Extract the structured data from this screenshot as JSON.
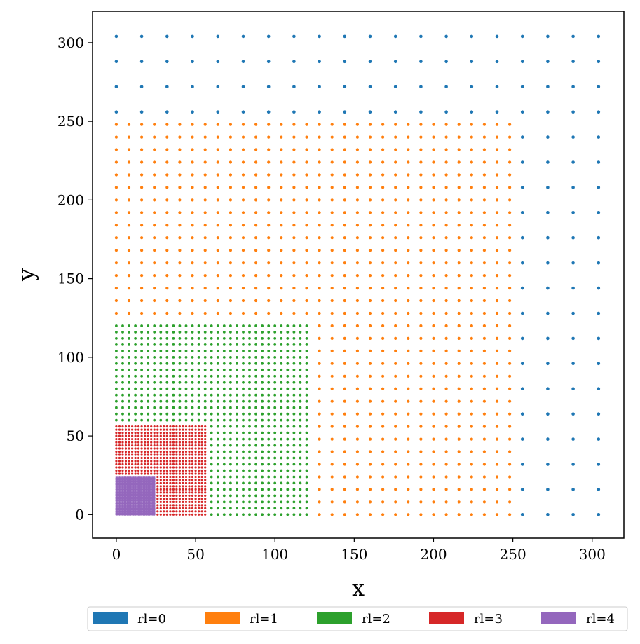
{
  "chart_data": {
    "type": "scatter",
    "title": "",
    "xlabel": "x",
    "ylabel": "y",
    "xlim": [
      -15,
      320
    ],
    "ylim": [
      -15,
      320
    ],
    "xticks": [
      0,
      50,
      100,
      150,
      200,
      250,
      300
    ],
    "yticks": [
      0,
      50,
      100,
      150,
      200,
      250,
      300
    ],
    "grid": false,
    "legend_position": "bottom",
    "series": [
      {
        "name": "rl=0",
        "color": "#1f77b4",
        "spacing": 16,
        "region": "x 0–304, y 0–304 (outside rl=1 region)"
      },
      {
        "name": "rl=1",
        "color": "#ff7f0e",
        "spacing": 8,
        "region": "x 0–248, y 0–248 (outside rl=2 region)"
      },
      {
        "name": "rl=2",
        "color": "#2ca02c",
        "spacing": 4,
        "region": "x 0–120, y 0–120 (outside rl=3 region)"
      },
      {
        "name": "rl=3",
        "color": "#d62728",
        "spacing": 2,
        "region": "x 0–56, y 0–56 (outside rl=4 region)"
      },
      {
        "name": "rl=4",
        "color": "#9467bd",
        "spacing": 1,
        "region": "x 0–24, y 0–24"
      }
    ]
  }
}
